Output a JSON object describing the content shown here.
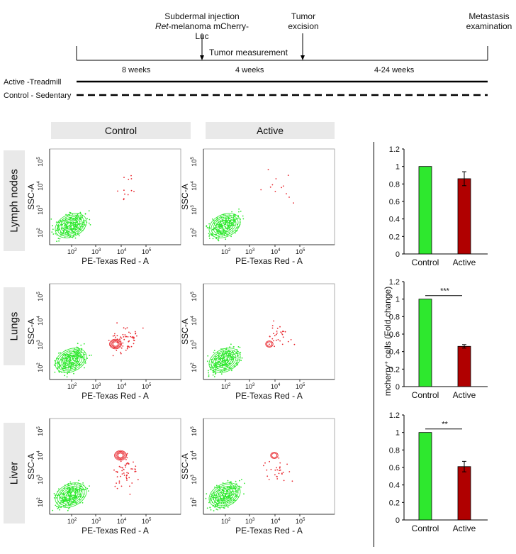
{
  "timeline": {
    "label_injection_line1": "Subdermal injection",
    "label_injection_italic": "Ret",
    "label_injection_line2_rest": "-melanoma mCherry-Luc",
    "label_excision_line1": "Tumor",
    "label_excision_line2": "excision",
    "label_metastasis_line1": "Metastasis",
    "label_metastasis_line2": "examination",
    "label_measurement": "Tumor measurement",
    "period1": "8 weeks",
    "period2": "4 weeks",
    "period3": "4-24 weeks",
    "legend_active": "Active -Treadmill",
    "legend_control": "Control - Sedentary"
  },
  "columns": [
    "Control",
    "Active"
  ],
  "rows": [
    "Lymph nodes",
    "Lungs",
    "Liver"
  ],
  "flow": {
    "xlabel": "PE-Texas Red - A",
    "ylabel": "SSC-A",
    "xticks": [
      {
        "b": "10",
        "e": "2"
      },
      {
        "b": "10",
        "e": "3"
      },
      {
        "b": "10",
        "e": "4"
      },
      {
        "b": "10",
        "e": "5"
      }
    ],
    "yticks": [
      {
        "b": "10",
        "e": "2"
      },
      {
        "b": "10",
        "e": "3"
      },
      {
        "b": "10",
        "e": "4"
      },
      {
        "b": "10",
        "e": "5"
      }
    ]
  },
  "colors": {
    "control": "#2ee82e",
    "active": "#b00000",
    "events": "#e8262d"
  },
  "shared_ylabel": "mcherry⁺ cells (Fold change)",
  "chart_data": [
    {
      "type": "bar",
      "categories": [
        "Control",
        "Active"
      ],
      "values": [
        1,
        0.86
      ],
      "errors": [
        0,
        0.08
      ],
      "ylim": [
        0,
        1.2
      ],
      "yticks": [
        0,
        0.2,
        0.4,
        0.6,
        0.8,
        1,
        1.2
      ],
      "significance": ""
    },
    {
      "type": "bar",
      "categories": [
        "Control",
        "Active"
      ],
      "values": [
        1,
        0.46
      ],
      "errors": [
        0,
        0.02
      ],
      "ylim": [
        0,
        1.2
      ],
      "yticks": [
        0,
        0.2,
        0.4,
        0.6,
        0.8,
        1,
        1.2
      ],
      "significance": "***"
    },
    {
      "type": "bar",
      "categories": [
        "Control",
        "Active"
      ],
      "values": [
        1,
        0.61
      ],
      "errors": [
        0,
        0.06
      ],
      "ylim": [
        0,
        1.2
      ],
      "yticks": [
        0,
        0.2,
        0.4,
        0.6,
        0.8,
        1,
        1.2
      ],
      "significance": "**"
    }
  ]
}
